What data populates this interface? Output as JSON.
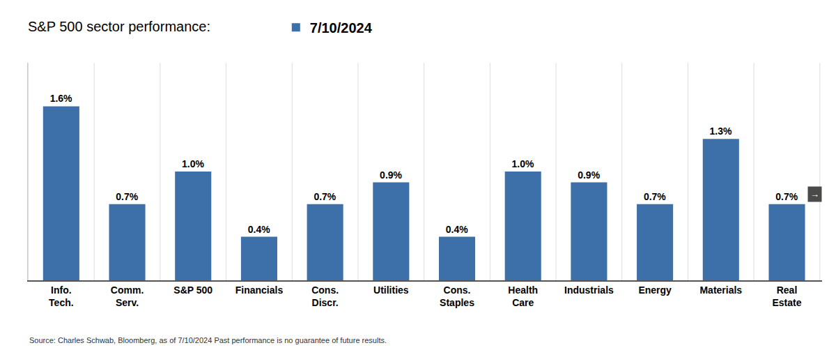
{
  "chart_data": {
    "type": "bar",
    "title": "S&P 500 sector performance:  ",
    "categories": [
      "Info.\nTech.",
      "Comm.\nServ.",
      "S&P 500",
      "Financials",
      "Cons.\nDiscr.",
      "Utilities",
      "Cons.\nStaples",
      "Health\nCare",
      "Industrials",
      "Energy",
      "Materials",
      "Real\nEstate"
    ],
    "series": [
      {
        "name": "7/10/2024",
        "color": "#3d6fa8",
        "values": [
          1.6,
          0.7,
          1.0,
          0.4,
          0.7,
          0.9,
          0.4,
          1.0,
          0.9,
          0.7,
          1.3,
          0.7
        ],
        "value_labels": [
          "1.6%",
          "0.7%",
          "1.0%",
          "0.4%",
          "0.7%",
          "0.9%",
          "0.4%",
          "1.0%",
          "0.9%",
          "0.7%",
          "1.3%",
          "0.7%"
        ]
      }
    ],
    "ylim": [
      0,
      2.0
    ],
    "data_labels": true,
    "tick_labels": "x",
    "legend": "top",
    "annotations": [
      "→",
      "Source: Charles Schwab, Bloomberg, as of 7/10/2024 Past performance is no guarantee of future results."
    ]
  }
}
